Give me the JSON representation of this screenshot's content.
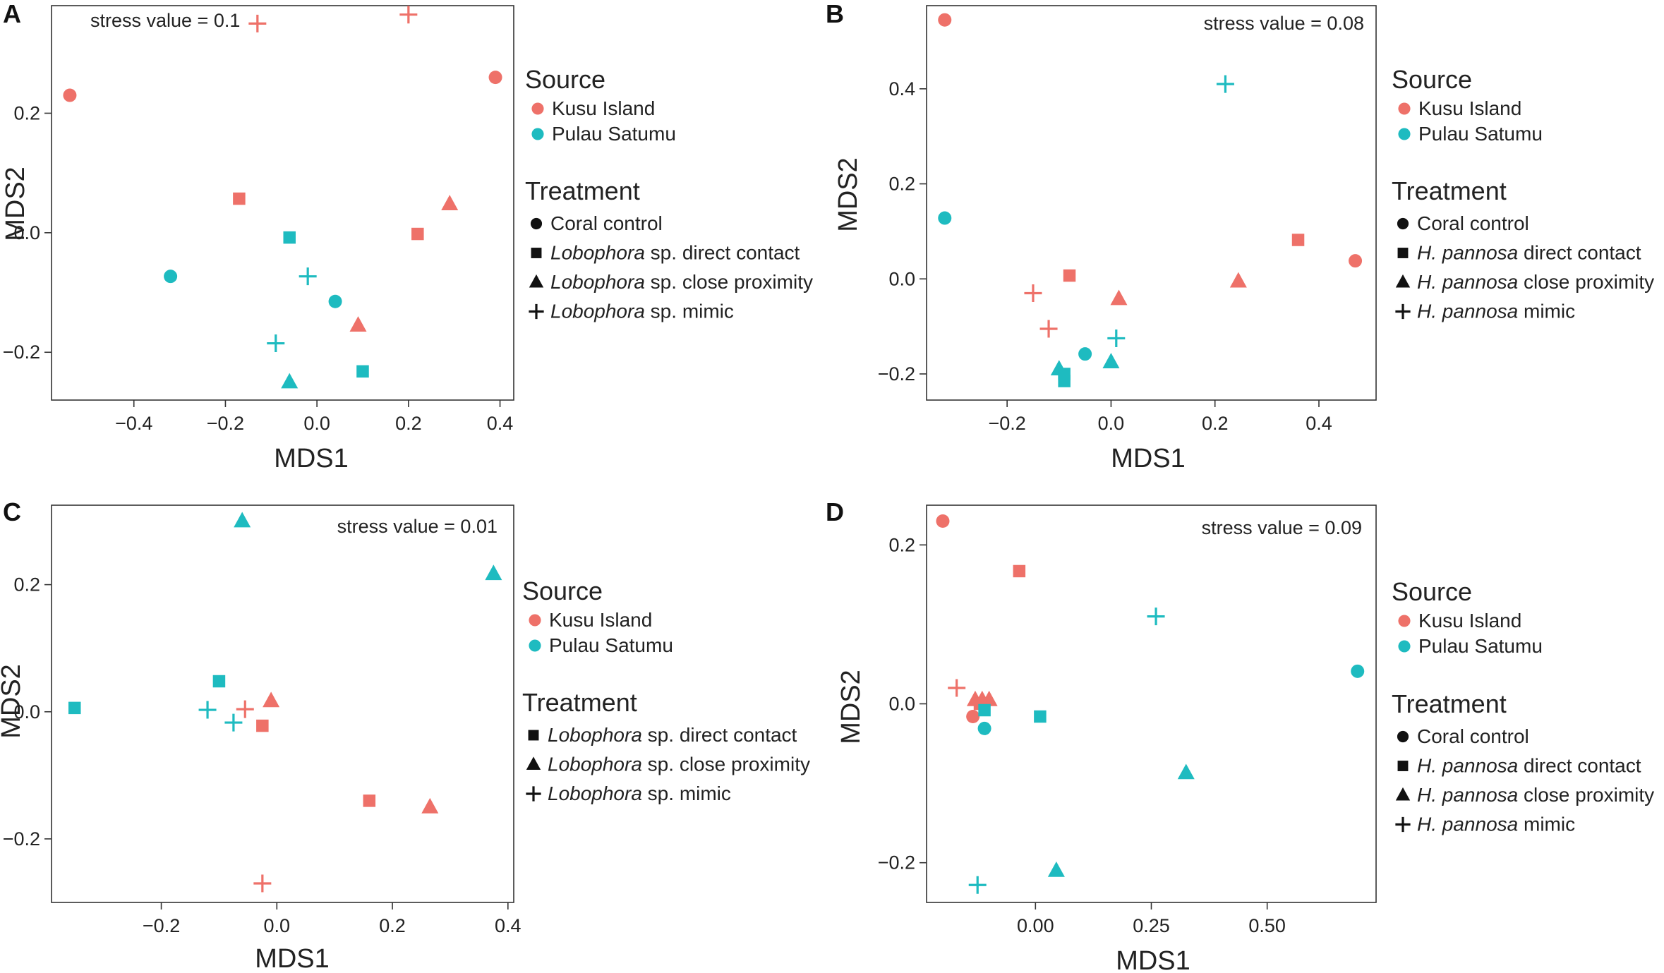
{
  "colors": {
    "kusu": "#EE7169",
    "satumu": "#1EBBC0",
    "black": "#111111",
    "axis": "#333333"
  },
  "legend_source_title": "Source",
  "legend_treatment_title": "Treatment",
  "chart_data": [
    {
      "panel": "A",
      "type": "scatter",
      "stress": "stress value = 0.1",
      "xlabel": "MDS1",
      "ylabel": "MDS2",
      "xlim": [
        -0.58,
        0.43
      ],
      "ylim": [
        -0.28,
        0.38
      ],
      "xticks": [
        -0.4,
        -0.2,
        0.0,
        0.2,
        0.4
      ],
      "xtick_labels": [
        "−0.4",
        "−0.2",
        "0.0",
        "0.2",
        "0.4"
      ],
      "yticks": [
        -0.2,
        0.0,
        0.2
      ],
      "ytick_labels": [
        "−0.2",
        "0.0",
        "0.2"
      ],
      "legend_sources": [
        "Kusu Island",
        "Pulau Satumu"
      ],
      "legend_treatments": [
        {
          "shape": "circle",
          "italic": "",
          "rest": "Coral control"
        },
        {
          "shape": "square",
          "italic": "Lobophora",
          "rest": " sp. direct contact"
        },
        {
          "shape": "triangle",
          "italic": "Lobophora",
          "rest": " sp. close proximity"
        },
        {
          "shape": "plus",
          "italic": "Lobophora",
          "rest": " sp. mimic"
        }
      ],
      "points": [
        {
          "x": -0.54,
          "y": 0.23,
          "shape": "circle",
          "source": "kusu"
        },
        {
          "x": 0.39,
          "y": 0.26,
          "shape": "circle",
          "source": "kusu"
        },
        {
          "x": -0.13,
          "y": 0.35,
          "shape": "plus",
          "source": "kusu"
        },
        {
          "x": 0.2,
          "y": 0.365,
          "shape": "plus",
          "source": "kusu"
        },
        {
          "x": -0.17,
          "y": 0.057,
          "shape": "square",
          "source": "kusu"
        },
        {
          "x": 0.22,
          "y": -0.002,
          "shape": "square",
          "source": "kusu"
        },
        {
          "x": 0.29,
          "y": 0.048,
          "shape": "triangle",
          "source": "kusu"
        },
        {
          "x": 0.09,
          "y": -0.155,
          "shape": "triangle",
          "source": "kusu"
        },
        {
          "x": -0.32,
          "y": -0.073,
          "shape": "circle",
          "source": "satumu"
        },
        {
          "x": 0.04,
          "y": -0.115,
          "shape": "circle",
          "source": "satumu"
        },
        {
          "x": -0.06,
          "y": -0.008,
          "shape": "square",
          "source": "satumu"
        },
        {
          "x": 0.1,
          "y": -0.232,
          "shape": "square",
          "source": "satumu"
        },
        {
          "x": -0.02,
          "y": -0.073,
          "shape": "plus",
          "source": "satumu"
        },
        {
          "x": -0.09,
          "y": -0.185,
          "shape": "plus",
          "source": "satumu"
        },
        {
          "x": -0.06,
          "y": -0.25,
          "shape": "triangle",
          "source": "satumu"
        }
      ]
    },
    {
      "panel": "B",
      "type": "scatter",
      "stress": "stress value = 0.08",
      "xlabel": "MDS1",
      "ylabel": "MDS2",
      "xlim": [
        -0.355,
        0.51
      ],
      "ylim": [
        -0.255,
        0.575
      ],
      "xticks": [
        -0.2,
        0.0,
        0.2,
        0.4
      ],
      "xtick_labels": [
        "−0.2",
        "0.0",
        "0.2",
        "0.4"
      ],
      "yticks": [
        -0.2,
        0.0,
        0.2,
        0.4
      ],
      "ytick_labels": [
        "−0.2",
        "0.0",
        "0.2",
        "0.4"
      ],
      "legend_sources": [
        "Kusu Island",
        "Pulau Satumu"
      ],
      "legend_treatments": [
        {
          "shape": "circle",
          "italic": "",
          "rest": "Coral control"
        },
        {
          "shape": "square",
          "italic": "H. pannosa",
          "rest": " direct contact"
        },
        {
          "shape": "triangle",
          "italic": "H. pannosa",
          "rest": " close proximity"
        },
        {
          "shape": "plus",
          "italic": "H. pannosa",
          "rest": " mimic"
        }
      ],
      "points": [
        {
          "x": -0.32,
          "y": 0.545,
          "shape": "circle",
          "source": "kusu"
        },
        {
          "x": 0.47,
          "y": 0.038,
          "shape": "circle",
          "source": "kusu"
        },
        {
          "x": 0.36,
          "y": 0.082,
          "shape": "square",
          "source": "kusu"
        },
        {
          "x": -0.08,
          "y": 0.007,
          "shape": "square",
          "source": "kusu"
        },
        {
          "x": 0.245,
          "y": -0.005,
          "shape": "triangle",
          "source": "kusu"
        },
        {
          "x": 0.015,
          "y": -0.042,
          "shape": "triangle",
          "source": "kusu"
        },
        {
          "x": -0.15,
          "y": -0.03,
          "shape": "plus",
          "source": "kusu"
        },
        {
          "x": -0.12,
          "y": -0.105,
          "shape": "plus",
          "source": "kusu"
        },
        {
          "x": -0.32,
          "y": 0.128,
          "shape": "circle",
          "source": "satumu"
        },
        {
          "x": -0.05,
          "y": -0.158,
          "shape": "circle",
          "source": "satumu"
        },
        {
          "x": 0.22,
          "y": 0.41,
          "shape": "plus",
          "source": "satumu"
        },
        {
          "x": 0.01,
          "y": -0.125,
          "shape": "plus",
          "source": "satumu"
        },
        {
          "x": 0.0,
          "y": -0.175,
          "shape": "triangle",
          "source": "satumu"
        },
        {
          "x": -0.1,
          "y": -0.19,
          "shape": "triangle",
          "source": "satumu"
        },
        {
          "x": -0.09,
          "y": -0.2,
          "shape": "square",
          "source": "satumu"
        },
        {
          "x": -0.09,
          "y": -0.215,
          "shape": "square",
          "source": "satumu"
        }
      ]
    },
    {
      "panel": "C",
      "type": "scatter",
      "stress": "stress value = 0.01",
      "xlabel": "MDS1",
      "ylabel": "MDS2",
      "xlim": [
        -0.39,
        0.41
      ],
      "ylim": [
        -0.3,
        0.325
      ],
      "xticks": [
        -0.2,
        0.0,
        0.2,
        0.4
      ],
      "xtick_labels": [
        "−0.2",
        "0.0",
        "0.2",
        "0.4"
      ],
      "yticks": [
        -0.2,
        0.0,
        0.2
      ],
      "ytick_labels": [
        "−0.2",
        "0.0",
        "0.2"
      ],
      "legend_sources": [
        "Kusu Island",
        "Pulau Satumu"
      ],
      "legend_treatments": [
        {
          "shape": "square",
          "italic": "Lobophora",
          "rest": " sp. direct contact"
        },
        {
          "shape": "triangle",
          "italic": "Lobophora",
          "rest": " sp. close proximity"
        },
        {
          "shape": "plus",
          "italic": "Lobophora",
          "rest": " sp. mimic"
        }
      ],
      "points": [
        {
          "x": -0.06,
          "y": 0.3,
          "shape": "triangle",
          "source": "satumu"
        },
        {
          "x": 0.375,
          "y": 0.217,
          "shape": "triangle",
          "source": "satumu"
        },
        {
          "x": -0.35,
          "y": 0.006,
          "shape": "square",
          "source": "satumu"
        },
        {
          "x": -0.1,
          "y": 0.048,
          "shape": "square",
          "source": "satumu"
        },
        {
          "x": -0.12,
          "y": 0.003,
          "shape": "plus",
          "source": "satumu"
        },
        {
          "x": -0.075,
          "y": -0.017,
          "shape": "plus",
          "source": "satumu"
        },
        {
          "x": -0.055,
          "y": 0.004,
          "shape": "plus",
          "source": "kusu"
        },
        {
          "x": -0.01,
          "y": 0.017,
          "shape": "triangle",
          "source": "kusu"
        },
        {
          "x": -0.025,
          "y": -0.022,
          "shape": "square",
          "source": "kusu"
        },
        {
          "x": 0.16,
          "y": -0.14,
          "shape": "square",
          "source": "kusu"
        },
        {
          "x": 0.265,
          "y": -0.15,
          "shape": "triangle",
          "source": "kusu"
        },
        {
          "x": -0.025,
          "y": -0.27,
          "shape": "plus",
          "source": "kusu"
        }
      ]
    },
    {
      "panel": "D",
      "type": "scatter",
      "stress": "stress value = 0.09",
      "xlabel": "MDS1",
      "ylabel": "MDS2",
      "xlim": [
        -0.235,
        0.735
      ],
      "ylim": [
        -0.25,
        0.25
      ],
      "xticks": [
        0.0,
        0.25,
        0.5
      ],
      "xtick_labels": [
        "0.00",
        "0.25",
        "0.50"
      ],
      "yticks": [
        -0.2,
        0.0,
        0.2
      ],
      "ytick_labels": [
        "−0.2",
        "0.0",
        "0.2"
      ],
      "legend_sources": [
        "Kusu Island",
        "Pulau Satumu"
      ],
      "legend_treatments": [
        {
          "shape": "circle",
          "italic": "",
          "rest": "Coral control"
        },
        {
          "shape": "square",
          "italic": "H. pannosa",
          "rest": " direct contact"
        },
        {
          "shape": "triangle",
          "italic": "H. pannosa",
          "rest": " close proximity"
        },
        {
          "shape": "plus",
          "italic": "H. pannosa",
          "rest": " mimic"
        }
      ],
      "points": [
        {
          "x": -0.2,
          "y": 0.23,
          "shape": "circle",
          "source": "kusu"
        },
        {
          "x": -0.035,
          "y": 0.167,
          "shape": "square",
          "source": "kusu"
        },
        {
          "x": -0.17,
          "y": 0.02,
          "shape": "plus",
          "source": "kusu"
        },
        {
          "x": -0.13,
          "y": 0.005,
          "shape": "triangle",
          "source": "kusu"
        },
        {
          "x": -0.115,
          "y": 0.005,
          "shape": "triangle",
          "source": "kusu"
        },
        {
          "x": -0.1,
          "y": 0.005,
          "shape": "triangle",
          "source": "kusu"
        },
        {
          "x": -0.12,
          "y": 0.0,
          "shape": "square",
          "source": "kusu"
        },
        {
          "x": -0.135,
          "y": -0.016,
          "shape": "circle",
          "source": "kusu"
        },
        {
          "x": -0.11,
          "y": -0.008,
          "shape": "square",
          "source": "satumu"
        },
        {
          "x": 0.01,
          "y": -0.016,
          "shape": "square",
          "source": "satumu"
        },
        {
          "x": -0.11,
          "y": -0.031,
          "shape": "circle",
          "source": "satumu"
        },
        {
          "x": 0.26,
          "y": 0.11,
          "shape": "plus",
          "source": "satumu"
        },
        {
          "x": 0.695,
          "y": 0.041,
          "shape": "circle",
          "source": "satumu"
        },
        {
          "x": 0.325,
          "y": -0.087,
          "shape": "triangle",
          "source": "satumu"
        },
        {
          "x": 0.045,
          "y": -0.21,
          "shape": "triangle",
          "source": "satumu"
        },
        {
          "x": -0.125,
          "y": -0.228,
          "shape": "plus",
          "source": "satumu"
        }
      ]
    }
  ]
}
